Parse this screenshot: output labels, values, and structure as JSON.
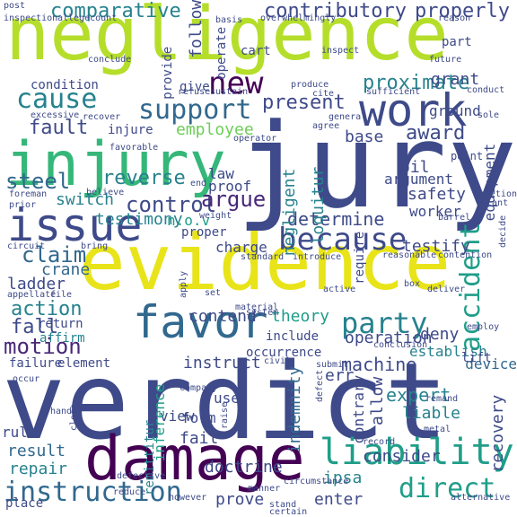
{
  "palette": {
    "background": "#ffffff",
    "dark_purple": "#440154",
    "purple": "#482878",
    "indigo": "#3e4a89",
    "blue": "#31688e",
    "teal": "#26828e",
    "green_teal": "#1f9e89",
    "green": "#35b779",
    "light_green": "#6ece58",
    "lime": "#b5de2b",
    "yellow": "#e8e419"
  },
  "words": [
    {
      "text": "negligence",
      "color": "#b5de2b"
    },
    {
      "text": "verdict",
      "color": "#3e4a89"
    },
    {
      "text": "jury",
      "color": "#3e4a89"
    },
    {
      "text": "evidence",
      "color": "#e8e419"
    },
    {
      "text": "injury",
      "color": "#35b779"
    },
    {
      "text": "damage",
      "color": "#440154"
    },
    {
      "text": "issue",
      "color": "#3e4a89"
    },
    {
      "text": "work",
      "color": "#3e4a89"
    },
    {
      "text": "favor",
      "color": "#31688e"
    },
    {
      "text": "because",
      "color": "#3e4a89"
    },
    {
      "text": "liability",
      "color": "#1f9e89"
    },
    {
      "text": "instruction",
      "color": "#31688e"
    },
    {
      "text": "direct",
      "color": "#1f9e89"
    },
    {
      "text": "party",
      "color": "#26828e"
    },
    {
      "text": "accident",
      "color": "#1f9e89"
    },
    {
      "text": "cause",
      "color": "#26828e"
    },
    {
      "text": "support",
      "color": "#31688e"
    },
    {
      "text": "contributory",
      "color": "#3e4a89"
    },
    {
      "text": "properly",
      "color": "#3e4a89"
    },
    {
      "text": "comparative",
      "color": "#26828e"
    },
    {
      "text": "proximate",
      "color": "#26828e"
    },
    {
      "text": "new",
      "color": "#440154"
    },
    {
      "text": "motion",
      "color": "#482878"
    },
    {
      "text": "claim",
      "color": "#31688e"
    },
    {
      "text": "fault",
      "color": "#3e4a89"
    },
    {
      "text": "steel",
      "color": "#31688e"
    },
    {
      "text": "control",
      "color": "#3e4a89"
    },
    {
      "text": "argue",
      "color": "#482878"
    },
    {
      "text": "determine",
      "color": "#3e4a89"
    },
    {
      "text": "reverse",
      "color": "#26828e"
    },
    {
      "text": "action",
      "color": "#26828e"
    },
    {
      "text": "fall",
      "color": "#3e4a89"
    },
    {
      "text": "present",
      "color": "#3e4a89"
    },
    {
      "text": "award",
      "color": "#3e4a89"
    },
    {
      "text": "base",
      "color": "#3e4a89"
    },
    {
      "text": "employee",
      "color": "#6ece58"
    },
    {
      "text": "testify",
      "color": "#3e4a89"
    },
    {
      "text": "crane",
      "color": "#31688e"
    },
    {
      "text": "ladder",
      "color": "#3e4a89"
    },
    {
      "text": "switch",
      "color": "#26828e"
    },
    {
      "text": "testimony",
      "color": "#26828e"
    },
    {
      "text": "contend",
      "color": "#3e4a89"
    },
    {
      "text": "theory",
      "color": "#1f9e89"
    },
    {
      "text": "machine",
      "color": "#3e4a89"
    },
    {
      "text": "expert",
      "color": "#26828e"
    },
    {
      "text": "liable",
      "color": "#26828e"
    },
    {
      "text": "recovery",
      "color": "#3e4a89"
    },
    {
      "text": "device",
      "color": "#31688e"
    },
    {
      "text": "result",
      "color": "#31688e"
    },
    {
      "text": "repair",
      "color": "#26828e"
    },
    {
      "text": "rule",
      "color": "#3e4a89"
    },
    {
      "text": "fail",
      "color": "#3e4a89"
    },
    {
      "text": "doctrine",
      "color": "#3e4a89"
    },
    {
      "text": "view",
      "color": "#3e4a89"
    },
    {
      "text": "form",
      "color": "#3e4a89"
    },
    {
      "text": "use",
      "color": "#3e4a89"
    },
    {
      "text": "instruct",
      "color": "#3e4a89"
    },
    {
      "text": "prove",
      "color": "#3e4a89"
    },
    {
      "text": "place",
      "color": "#3e4a89"
    },
    {
      "text": "ipsa",
      "color": "#26828e"
    },
    {
      "text": "enter",
      "color": "#3e4a89"
    },
    {
      "text": "consider",
      "color": "#3e4a89"
    },
    {
      "text": "err",
      "color": "#3e4a89"
    },
    {
      "text": "allow",
      "color": "#3e4a89"
    },
    {
      "text": "indemnity",
      "color": "#31688e"
    },
    {
      "text": "contrary",
      "color": "#3e4a89"
    },
    {
      "text": "deny",
      "color": "#3e4a89"
    },
    {
      "text": "operation",
      "color": "#3e4a89"
    },
    {
      "text": "establish",
      "color": "#26828e"
    },
    {
      "text": "safety",
      "color": "#3e4a89"
    },
    {
      "text": "worker",
      "color": "#3e4a89"
    },
    {
      "text": "oil",
      "color": "#3e4a89"
    },
    {
      "text": "argument",
      "color": "#3e4a89"
    },
    {
      "text": "equipment",
      "color": "#3e4a89"
    },
    {
      "text": "ground",
      "color": "#3e4a89"
    },
    {
      "text": "grant",
      "color": "#3e4a89"
    },
    {
      "text": "loquitur",
      "color": "#26828e"
    },
    {
      "text": "negligent",
      "color": "#26828e"
    },
    {
      "text": "law",
      "color": "#3e4a89"
    },
    {
      "text": "proof",
      "color": "#3e4a89"
    },
    {
      "text": "follow",
      "color": "#3e4a89"
    },
    {
      "text": "provide",
      "color": "#3e4a89"
    },
    {
      "text": "give",
      "color": "#3e4a89"
    },
    {
      "text": "injure",
      "color": "#3e4a89"
    },
    {
      "text": "condition",
      "color": "#3e4a89"
    },
    {
      "text": "include",
      "color": "#3e4a89"
    },
    {
      "text": "occurrence",
      "color": "#3e4a89"
    },
    {
      "text": "affirm",
      "color": "#26828e"
    },
    {
      "text": "return",
      "color": "#3e4a89"
    },
    {
      "text": "element",
      "color": "#3e4a89"
    },
    {
      "text": "failure",
      "color": "#3e4a89"
    },
    {
      "text": "charge",
      "color": "#3e4a89"
    },
    {
      "text": "proper",
      "color": "#3e4a89"
    },
    {
      "text": "require",
      "color": "#3e4a89"
    },
    {
      "text": "remittitur",
      "color": "#26828e"
    },
    {
      "text": "inference",
      "color": "#1f9e89"
    },
    {
      "text": "operate",
      "color": "#3e4a89"
    },
    {
      "text": "cart",
      "color": "#3e4a89"
    },
    {
      "text": "part",
      "color": "#3e4a89"
    },
    {
      "text": "lift",
      "color": "#3e4a89"
    },
    {
      "text": "point",
      "color": "#3e4a89"
    },
    {
      "text": "n.o.v",
      "color": "#1f9e89"
    },
    {
      "text": "recover",
      "color": "#3e4a89"
    },
    {
      "text": "refuse",
      "color": "#3e4a89"
    },
    {
      "text": "sustain",
      "color": "#3e4a89"
    },
    {
      "text": "produce",
      "color": "#3e4a89"
    },
    {
      "text": "cite",
      "color": "#3e4a89"
    },
    {
      "text": "sufficient",
      "color": "#3e4a89"
    },
    {
      "text": "future",
      "color": "#3e4a89"
    },
    {
      "text": "conclude",
      "color": "#3e4a89"
    },
    {
      "text": "excessive",
      "color": "#3e4a89"
    },
    {
      "text": "inspection",
      "color": "#3e4a89"
    },
    {
      "text": "allegecount",
      "color": "#3e4a89"
    },
    {
      "text": "overwhelmingly",
      "color": "#3e4a89"
    },
    {
      "text": "reason",
      "color": "#3e4a89"
    },
    {
      "text": "circumstance",
      "color": "#3e4a89"
    },
    {
      "text": "conclusion",
      "color": "#3e4a89"
    },
    {
      "text": "defect",
      "color": "#3e4a89"
    },
    {
      "text": "however",
      "color": "#3e4a89"
    },
    {
      "text": "stand",
      "color": "#3e4a89"
    },
    {
      "text": "reduce",
      "color": "#3e4a89"
    },
    {
      "text": "foreman",
      "color": "#3e4a89"
    },
    {
      "text": "prior",
      "color": "#3e4a89"
    },
    {
      "text": "circuit",
      "color": "#3e4a89"
    },
    {
      "text": "appellate",
      "color": "#3e4a89"
    },
    {
      "text": "file",
      "color": "#3e4a89"
    },
    {
      "text": "post",
      "color": "#3e4a89"
    },
    {
      "text": "manner",
      "color": "#3e4a89"
    },
    {
      "text": "certain",
      "color": "#3e4a89"
    },
    {
      "text": "company",
      "color": "#3e4a89"
    },
    {
      "text": "raise",
      "color": "#3e4a89"
    },
    {
      "text": "metal",
      "color": "#3e4a89"
    },
    {
      "text": "record",
      "color": "#3e4a89"
    },
    {
      "text": "remand",
      "color": "#3e4a89"
    },
    {
      "text": "alternative",
      "color": "#3e4a89"
    },
    {
      "text": "occur",
      "color": "#3e4a89"
    },
    {
      "text": "hand",
      "color": "#3e4a89"
    },
    {
      "text": "close",
      "color": "#3e4a89"
    },
    {
      "text": "defective",
      "color": "#3e4a89"
    },
    {
      "text": "active",
      "color": "#3e4a89"
    },
    {
      "text": "deliver",
      "color": "#3e4a89"
    },
    {
      "text": "box",
      "color": "#3e4a89"
    },
    {
      "text": "employ",
      "color": "#3e4a89"
    },
    {
      "text": "position",
      "color": "#3e4a89"
    },
    {
      "text": "plant",
      "color": "#3e4a89"
    },
    {
      "text": "barrel",
      "color": "#3e4a89"
    },
    {
      "text": "contention",
      "color": "#3e4a89"
    },
    {
      "text": "reasonable",
      "color": "#3e4a89"
    },
    {
      "text": "standard",
      "color": "#3e4a89"
    },
    {
      "text": "introduce",
      "color": "#3e4a89"
    },
    {
      "text": "weight",
      "color": "#3e4a89"
    },
    {
      "text": "bring",
      "color": "#3e4a89"
    },
    {
      "text": "favorable",
      "color": "#3e4a89"
    },
    {
      "text": "agree",
      "color": "#3e4a89"
    },
    {
      "text": "general",
      "color": "#3e4a89"
    },
    {
      "text": "sole",
      "color": "#3e4a89"
    },
    {
      "text": "conduct",
      "color": "#3e4a89"
    },
    {
      "text": "operator",
      "color": "#3e4a89"
    },
    {
      "text": "believe",
      "color": "#3e4a89"
    },
    {
      "text": "end",
      "color": "#3e4a89"
    },
    {
      "text": "set",
      "color": "#3e4a89"
    },
    {
      "text": "submit",
      "color": "#3e4a89"
    },
    {
      "text": "system",
      "color": "#3e4a89"
    },
    {
      "text": "material",
      "color": "#3e4a89"
    },
    {
      "text": "civil",
      "color": "#3e4a89"
    },
    {
      "text": "apply",
      "color": "#3e4a89"
    },
    {
      "text": "basis",
      "color": "#3e4a89"
    },
    {
      "text": "inspect",
      "color": "#3e4a89"
    },
    {
      "text": "decide",
      "color": "#3e4a89"
    }
  ]
}
